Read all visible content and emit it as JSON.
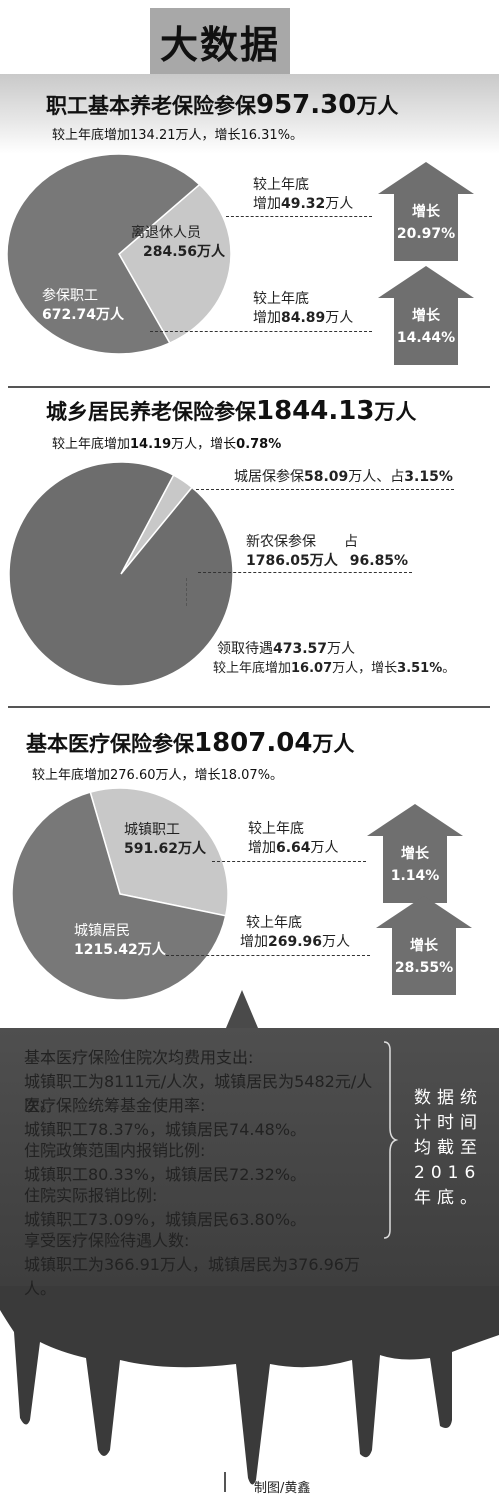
{
  "header": {
    "title": "大数据"
  },
  "colors": {
    "pie_dark": "#787878",
    "pie_light": "#c8c8c8",
    "pie_dark2": "#6d6d6d",
    "panel": "#444444",
    "arrow": "#6f6f6f"
  },
  "section1": {
    "title_prefix": "职工基本养老保险参保",
    "title_value": "957.30",
    "title_unit": "万人",
    "subtitle": "较上年底增加134.21万人，增长16.31%。",
    "slice_a": {
      "line1": "离退休人员",
      "line2": "284.56万人"
    },
    "slice_b": {
      "line1": "参保职工",
      "line2": "672.74万人"
    },
    "inc_a": {
      "line1": "较上年底",
      "line2_prefix": "增加",
      "line2_value": "49.32",
      "line2_unit": "万人"
    },
    "inc_b": {
      "line1": "较上年底",
      "line2_prefix": "增加",
      "line2_value": "84.89",
      "line2_unit": "万人"
    },
    "arrow_a": {
      "label": "增长",
      "value": "20.97%"
    },
    "arrow_b": {
      "label": "增长",
      "value": "14.44%"
    }
  },
  "section2": {
    "title_prefix": "城乡居民养老保险参保",
    "title_value": "1844.13",
    "title_unit": "万人",
    "subtitle_prefix": "较上年底增加",
    "subtitle_value1": "14.19",
    "subtitle_mid": "万人，增长",
    "subtitle_value2": "0.78%",
    "slice_a_text": "城居保参保",
    "slice_a_value": "58.09",
    "slice_a_mid": "万人、占",
    "slice_a_pct": "3.15%",
    "slice_b": {
      "line1": "新农保参保",
      "line1b": "占",
      "line2": "1786.05万人",
      "line2b": "96.85%"
    },
    "receive": {
      "line1_prefix": "领取待遇",
      "line1_value": "473.57",
      "line1_unit": "万人",
      "line2_prefix": "较上年底增加",
      "line2_value": "16.07",
      "line2_mid": "万人，增长",
      "line2_pct": "3.51%",
      "line2_end": "。"
    }
  },
  "section3": {
    "title_prefix": "基本医疗保险参保",
    "title_value": "1807.04",
    "title_unit": "万人",
    "subtitle": "较上年底增加276.60万人，增长18.07%。",
    "slice_a": {
      "line1": "城镇职工",
      "line2": "591.62万人"
    },
    "slice_b": {
      "line1": "城镇居民",
      "line2": "1215.42万人"
    },
    "inc_a": {
      "line1": "较上年底",
      "line2_prefix": "增加",
      "line2_value": "6.64",
      "line2_unit": "万人"
    },
    "inc_b": {
      "line1": "较上年底",
      "line2_prefix": "增加",
      "line2_value": "269.96",
      "line2_unit": "万人"
    },
    "arrow_a": {
      "label": "增长",
      "value": "1.14%"
    },
    "arrow_b": {
      "label": "增长",
      "value": "28.55%"
    }
  },
  "panel": {
    "items": [
      {
        "q": "基本医疗保险住院次均费用支出:",
        "a": "城镇职工为8111元/人次，城镇居民为5482元/人次。"
      },
      {
        "q": "医疗保险统筹基金使用率:",
        "a": "城镇职工78.37%，城镇居民74.48%。"
      },
      {
        "q": "住院政策范围内报销比例:",
        "a": "城镇职工80.33%，城镇居民72.32%。"
      },
      {
        "q": "住院实际报销比例:",
        "a": "城镇职工73.09%，城镇居民63.80%。"
      },
      {
        "q": "享受医疗保险待遇人数:",
        "a": "城镇职工为366.91万人，城镇居民为376.96万人。"
      }
    ],
    "note": "数据统计时间均截至2016年底。"
  },
  "credit": "制图/黄鑫",
  "chart_data": [
    {
      "type": "pie",
      "title": "职工基本养老保险参保957.30万人",
      "categories": [
        "离退休人员",
        "参保职工"
      ],
      "values": [
        284.56,
        672.74
      ]
    },
    {
      "type": "pie",
      "title": "城乡居民养老保险参保1844.13万人",
      "categories": [
        "城居保参保",
        "新农保参保"
      ],
      "values": [
        58.09,
        1786.05
      ]
    },
    {
      "type": "pie",
      "title": "基本医疗保险参保1807.04万人",
      "categories": [
        "城镇职工",
        "城镇居民"
      ],
      "values": [
        591.62,
        1215.42
      ]
    }
  ]
}
